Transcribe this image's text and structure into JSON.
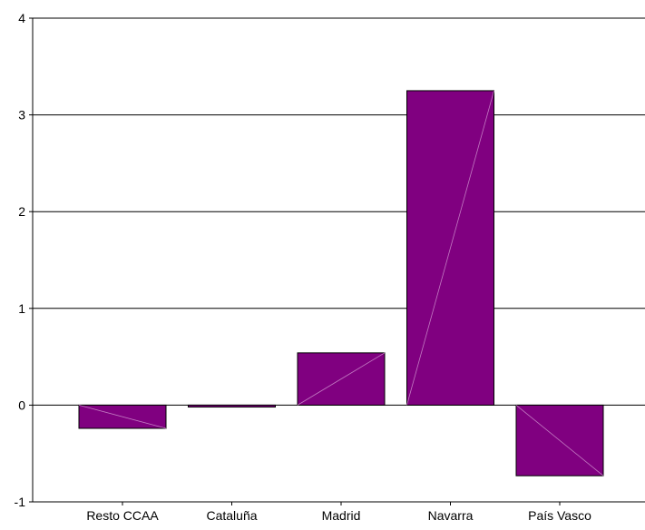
{
  "chart_data": {
    "type": "bar",
    "categories": [
      "Resto CCAA",
      "Cataluña",
      "Madrid",
      "Navarra",
      "País Vasco"
    ],
    "values": [
      -0.24,
      -0.02,
      0.54,
      3.25,
      -0.73
    ],
    "title": "",
    "xlabel": "",
    "ylabel": "",
    "ylim": [
      -1,
      4
    ],
    "yticks": [
      "-1",
      "0",
      "1",
      "2",
      "3",
      "4"
    ],
    "grid": true,
    "legend": "none",
    "colors": {
      "bar_fill": "#800080",
      "bar_stroke": "#000000",
      "gridline": "#000000",
      "bar_highlight": "#c27ac2"
    }
  }
}
